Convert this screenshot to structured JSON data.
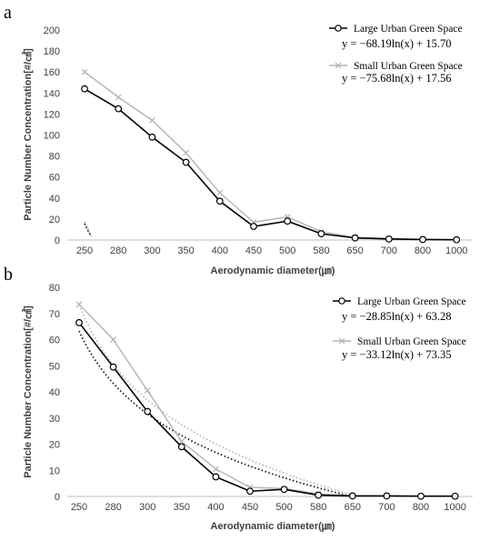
{
  "chart_data": [
    {
      "type": "line",
      "panel_label": "a",
      "categories": [
        "250",
        "280",
        "300",
        "350",
        "400",
        "450",
        "500",
        "580",
        "650",
        "700",
        "800",
        "1000"
      ],
      "ylabel": "Particle Number Concentration[#/㎤]",
      "xlabel": "Aerodynamic diameter(㎛)",
      "ylim": [
        0,
        200
      ],
      "yticks": [
        "0",
        "20",
        "40",
        "60",
        "80",
        "100",
        "120",
        "140",
        "160",
        "180",
        "200"
      ],
      "series": [
        {
          "name": "Large Urban Green Space",
          "color": "#000000",
          "marker": "circle",
          "values": [
            144,
            125,
            98,
            74,
            37,
            13,
            18,
            6,
            2,
            1,
            0.5,
            0.3
          ],
          "trendline": {
            "a": -68.19,
            "b": 15.7
          }
        },
        {
          "name": "Small Urban Green Space",
          "color": "#b3b3b3",
          "marker": "x",
          "values": [
            160,
            136,
            114,
            83,
            45,
            17,
            22,
            8,
            2.5,
            1.5,
            0.6,
            0.3
          ],
          "trendline": {
            "a": -75.68,
            "b": 17.56
          }
        }
      ],
      "equations": [
        "y = −68.19ln(x) + 15.70",
        "y = −75.68ln(x) + 17.56"
      ],
      "legend_position": "top-right",
      "grid": false
    },
    {
      "type": "line",
      "panel_label": "b",
      "categories": [
        "250",
        "280",
        "300",
        "350",
        "400",
        "450",
        "500",
        "580",
        "650",
        "700",
        "800",
        "1000"
      ],
      "ylabel": "Particle Number Concentration[#/㎤]",
      "xlabel": "Aerodynamic diameter(㎛)",
      "ylim": [
        0,
        80
      ],
      "yticks": [
        "0",
        "10",
        "20",
        "30",
        "40",
        "50",
        "60",
        "70",
        "80"
      ],
      "series": [
        {
          "name": "Large Urban Green Space",
          "color": "#000000",
          "marker": "circle",
          "values": [
            66.5,
            49.5,
            32.5,
            19,
            7.5,
            2,
            2.7,
            0.5,
            0.2,
            0.2,
            0.1,
            0.1
          ],
          "trendline": {
            "a": -28.85,
            "b": 63.28
          }
        },
        {
          "name": "Small Urban Green Space",
          "color": "#b3b3b3",
          "marker": "x",
          "values": [
            73.5,
            60,
            40.5,
            21,
            10.5,
            3.5,
            3,
            1,
            0.3,
            0.2,
            0.1,
            0.1
          ],
          "trendline": {
            "a": -33.12,
            "b": 73.35
          }
        }
      ],
      "equations": [
        "y = −28.85ln(x) + 63.28",
        "y = −33.12ln(x) + 73.35"
      ],
      "legend_position": "top-right",
      "grid": false
    }
  ]
}
